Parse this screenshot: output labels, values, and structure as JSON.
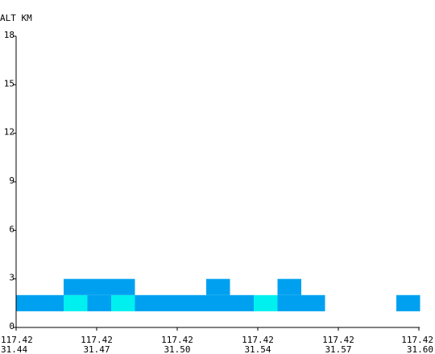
{
  "chart_data": {
    "type": "heatmap",
    "ylabel": "ALT KM",
    "ylim": [
      0,
      18
    ],
    "y_ticks": [
      "0",
      "3",
      "6",
      "9",
      "12",
      "15",
      "18"
    ],
    "x_ticks": [
      {
        "lon": "117.42",
        "lat": "31.44"
      },
      {
        "lon": "117.42",
        "lat": "31.47"
      },
      {
        "lon": "117.42",
        "lat": "31.50"
      },
      {
        "lon": "117.42",
        "lat": "31.54"
      },
      {
        "lon": "117.42",
        "lat": "31.57"
      },
      {
        "lon": "117.42",
        "lat": "31.60"
      }
    ],
    "x_range": [
      0,
      5
    ],
    "cell_width": 0.295,
    "cell_height": 1.0,
    "colors": {
      "blue": "#00a0f0",
      "cyan": "#00f0f0"
    },
    "cells": [
      {
        "x": 0.0,
        "y": 1,
        "color": "blue"
      },
      {
        "x": 0.295,
        "y": 1,
        "color": "blue"
      },
      {
        "x": 0.59,
        "y": 1,
        "color": "cyan"
      },
      {
        "x": 0.59,
        "y": 2,
        "color": "blue"
      },
      {
        "x": 0.885,
        "y": 1,
        "color": "blue"
      },
      {
        "x": 0.885,
        "y": 2,
        "color": "blue"
      },
      {
        "x": 1.18,
        "y": 1,
        "color": "cyan"
      },
      {
        "x": 1.18,
        "y": 2,
        "color": "blue"
      },
      {
        "x": 1.475,
        "y": 1,
        "color": "blue"
      },
      {
        "x": 1.77,
        "y": 1,
        "color": "blue"
      },
      {
        "x": 2.065,
        "y": 1,
        "color": "blue"
      },
      {
        "x": 2.36,
        "y": 1,
        "color": "blue"
      },
      {
        "x": 2.36,
        "y": 2,
        "color": "blue"
      },
      {
        "x": 2.655,
        "y": 1,
        "color": "blue"
      },
      {
        "x": 2.95,
        "y": 1,
        "color": "cyan"
      },
      {
        "x": 3.245,
        "y": 1,
        "color": "blue"
      },
      {
        "x": 3.245,
        "y": 2,
        "color": "blue"
      },
      {
        "x": 3.54,
        "y": 1,
        "color": "blue"
      },
      {
        "x": 4.72,
        "y": 1,
        "color": "blue"
      }
    ]
  }
}
